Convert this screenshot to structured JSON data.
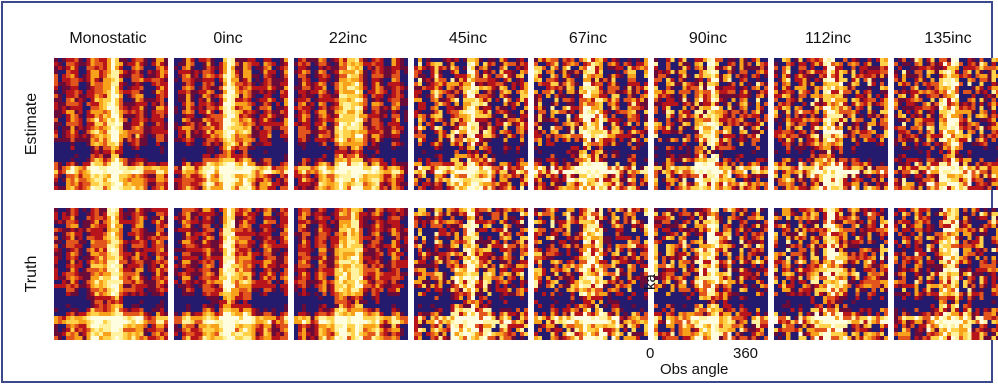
{
  "columns": [
    "Monostatic",
    "0inc",
    "22inc",
    "45inc",
    "67inc",
    "90inc",
    "112inc",
    "135inc"
  ],
  "rows": [
    "Estimate",
    "Truth"
  ],
  "axes": {
    "y_label": "ka",
    "x_label": "Obs angle",
    "x_min": "0",
    "x_max": "360"
  },
  "colors": {
    "border": "#3c4a8c",
    "palette": [
      "#fffde0",
      "#fff2a0",
      "#ffd24a",
      "#f7a21a",
      "#e2561e",
      "#b8141c",
      "#6a0c3a",
      "#241a6e"
    ]
  }
}
